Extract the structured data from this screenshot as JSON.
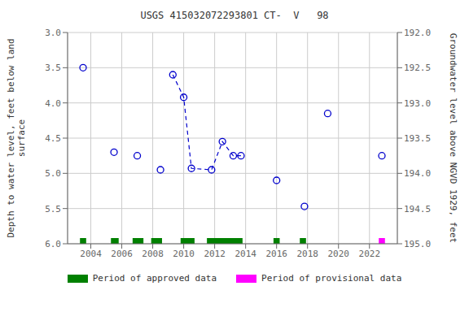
{
  "chart_data": {
    "type": "scatter",
    "title": "USGS 415032072293801 CT-  V   98",
    "ylabel": "Depth to water level, feet below land\nsurface",
    "y2label": "Groundwater level above NGVD 1929, feet",
    "xlim": [
      2002.5,
      2023.8
    ],
    "xticks": [
      2004,
      2006,
      2008,
      2010,
      2012,
      2014,
      2016,
      2018,
      2020,
      2022
    ],
    "ylim": [
      6.0,
      3.0
    ],
    "yticks": [
      {
        "value": 3.0,
        "label": "3.0"
      },
      {
        "value": 3.5,
        "label": "3.5"
      },
      {
        "value": 4.0,
        "label": "4.0"
      },
      {
        "value": 4.5,
        "label": "4.5"
      },
      {
        "value": 5.0,
        "label": "5.0"
      },
      {
        "value": 5.5,
        "label": "5.5"
      },
      {
        "value": 6.0,
        "label": "6.0"
      }
    ],
    "y2lim": [
      195.0,
      192.0
    ],
    "y2ticks": [
      {
        "value": 192.0,
        "label": "192.0"
      },
      {
        "value": 192.5,
        "label": "192.5"
      },
      {
        "value": 193.0,
        "label": "193.0"
      },
      {
        "value": 193.5,
        "label": "193.5"
      },
      {
        "value": 194.0,
        "label": "194.0"
      },
      {
        "value": 194.5,
        "label": "194.5"
      },
      {
        "value": 195.0,
        "label": "195.0"
      }
    ],
    "grid": true,
    "legend": "bottom",
    "series": [
      {
        "type": "scatter",
        "color": "#0000cc",
        "marker": "circle",
        "x": [
          2003.5,
          2005.5,
          2007.0,
          2008.5,
          2009.3,
          2010.0,
          2010.5,
          2011.8,
          2012.5,
          2013.2,
          2013.7,
          2016.0,
          2017.8,
          2019.3,
          2022.8
        ],
        "values": [
          3.5,
          4.7,
          4.75,
          4.95,
          3.6,
          3.92,
          4.93,
          4.95,
          4.55,
          4.75,
          4.75,
          5.1,
          5.47,
          4.15,
          4.75
        ]
      },
      {
        "type": "line",
        "color": "#0000cc",
        "line_style": "dashed",
        "x": [
          2009.3,
          2010.0,
          2010.5,
          2011.8,
          2012.5,
          2013.2,
          2013.7
        ],
        "values": [
          3.6,
          3.92,
          4.93,
          4.95,
          4.55,
          4.75,
          4.75
        ]
      },
      {
        "type": "period",
        "name": "Period of approved data",
        "color": "#008000",
        "periods": [
          [
            2003.3,
            2003.7
          ],
          [
            2005.3,
            2005.8
          ],
          [
            2006.7,
            2007.4
          ],
          [
            2007.9,
            2008.6
          ],
          [
            2009.8,
            2010.7
          ],
          [
            2011.5,
            2013.8
          ],
          [
            2015.8,
            2016.2
          ],
          [
            2017.5,
            2017.9
          ]
        ]
      },
      {
        "type": "period",
        "name": "Period of provisional data",
        "color": "#ff00ff",
        "periods": [
          [
            2022.6,
            2023.0
          ]
        ]
      }
    ]
  }
}
